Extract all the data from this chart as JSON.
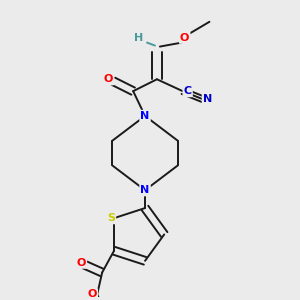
{
  "bg_color": "#ebebeb",
  "bond_color": "#1a1a1a",
  "atom_colors": {
    "O": "#ff0000",
    "N": "#0000ff",
    "S": "#cccc00",
    "H": "#4a9a9a",
    "CN_blue": "#0000cc"
  },
  "figsize": [
    3.0,
    3.0
  ],
  "dpi": 100
}
